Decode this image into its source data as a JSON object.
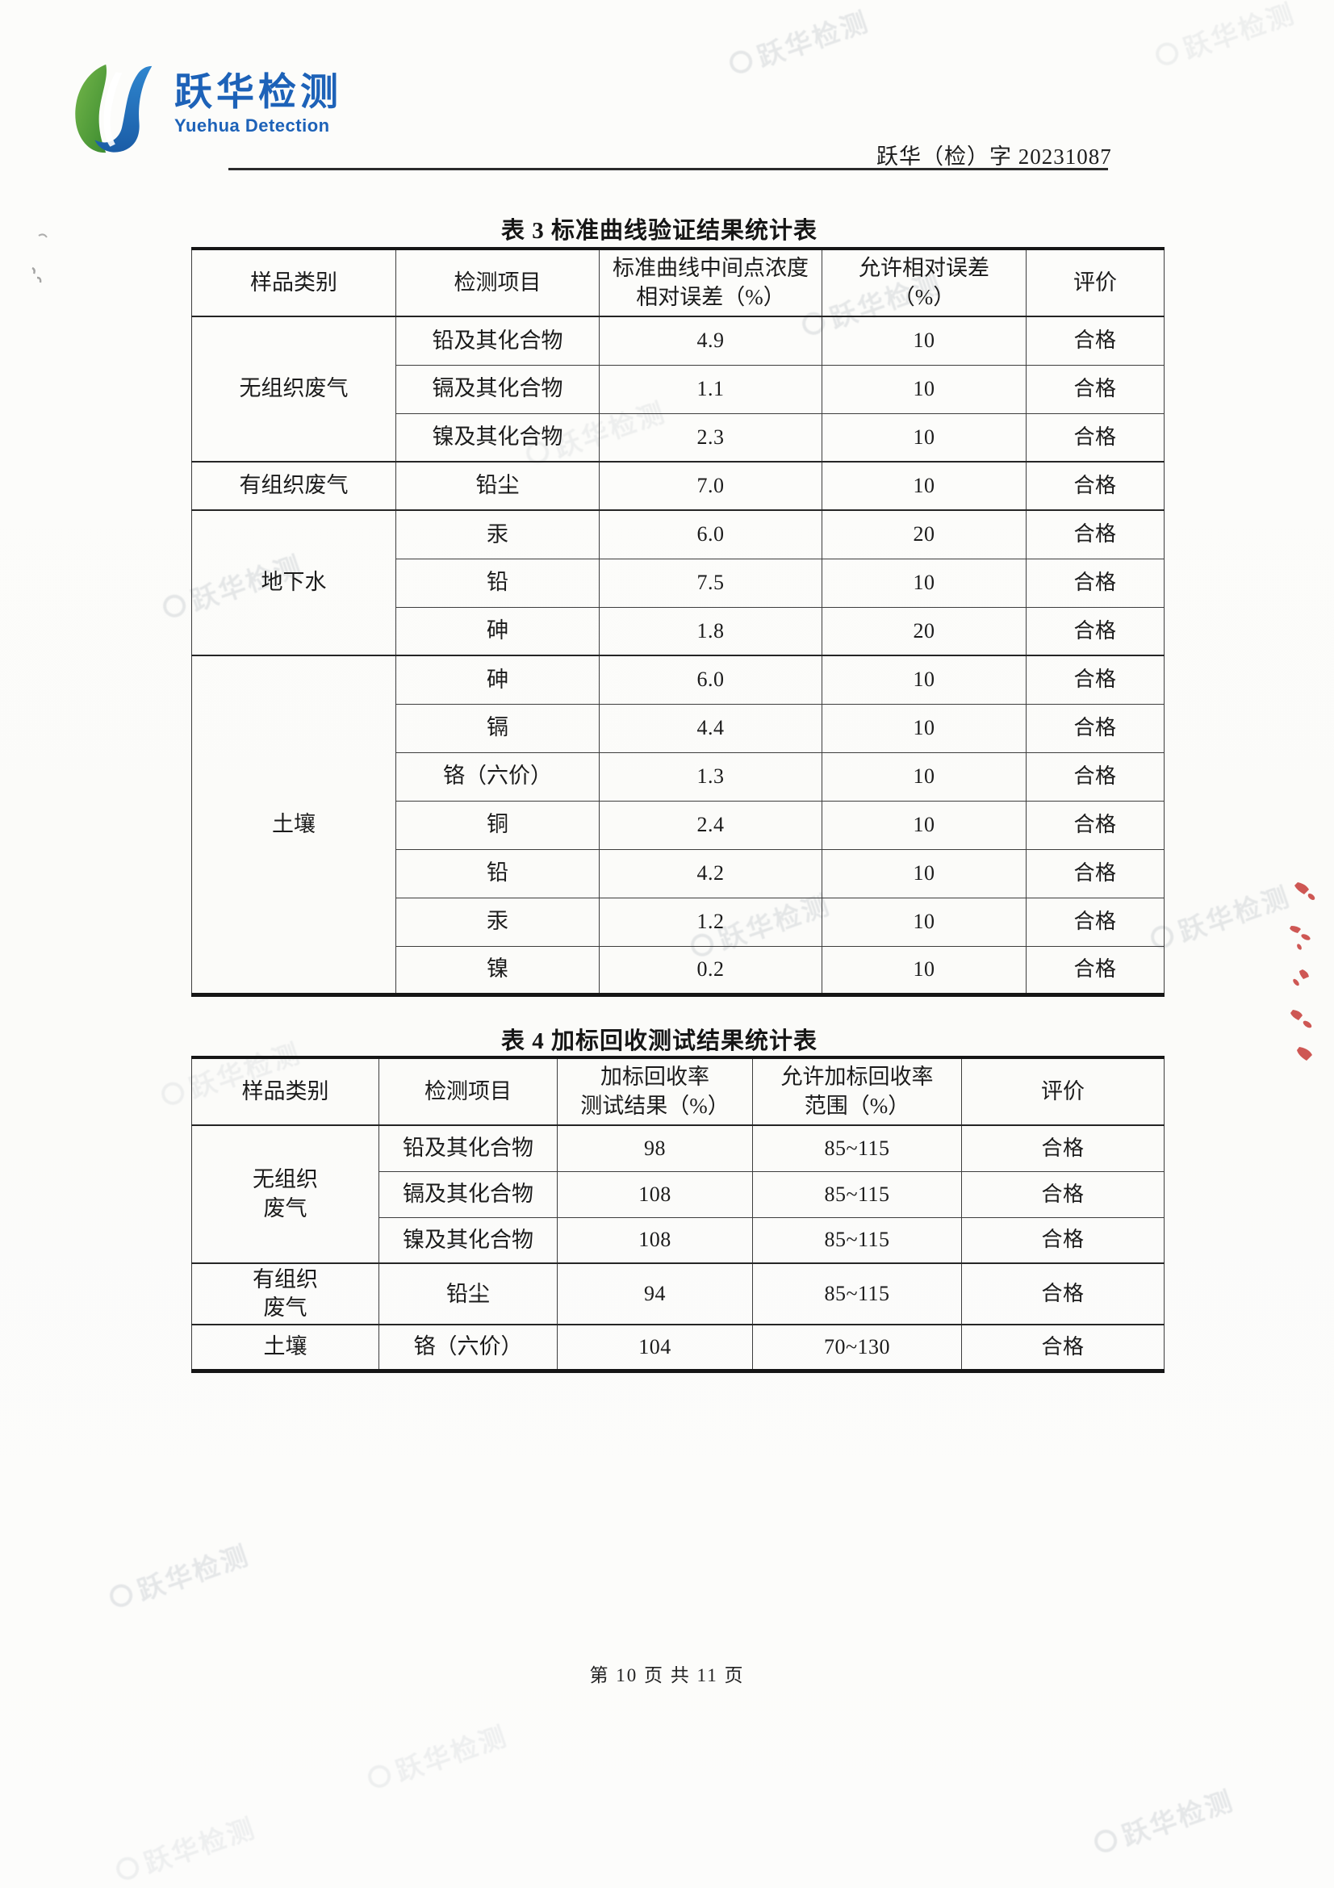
{
  "header": {
    "logo_cn": "跃华检测",
    "logo_en": "Yuehua Detection",
    "doc_number": "跃华（检）字 20231087"
  },
  "table3": {
    "title": "表 3 标准曲线验证结果统计表",
    "columns": [
      "样品类别",
      "检测项目",
      "标准曲线中间点浓度\n相对误差（%）",
      "允许相对误差\n（%）",
      "评价"
    ],
    "groups": [
      {
        "category": "无组织废气",
        "rows": [
          [
            "铅及其化合物",
            "4.9",
            "10",
            "合格"
          ],
          [
            "镉及其化合物",
            "1.1",
            "10",
            "合格"
          ],
          [
            "镍及其化合物",
            "2.3",
            "10",
            "合格"
          ]
        ]
      },
      {
        "category": "有组织废气",
        "rows": [
          [
            "铅尘",
            "7.0",
            "10",
            "合格"
          ]
        ]
      },
      {
        "category": "地下水",
        "rows": [
          [
            "汞",
            "6.0",
            "20",
            "合格"
          ],
          [
            "铅",
            "7.5",
            "10",
            "合格"
          ],
          [
            "砷",
            "1.8",
            "20",
            "合格"
          ]
        ]
      },
      {
        "category": "土壤",
        "rows": [
          [
            "砷",
            "6.0",
            "10",
            "合格"
          ],
          [
            "镉",
            "4.4",
            "10",
            "合格"
          ],
          [
            "铬（六价）",
            "1.3",
            "10",
            "合格"
          ],
          [
            "铜",
            "2.4",
            "10",
            "合格"
          ],
          [
            "铅",
            "4.2",
            "10",
            "合格"
          ],
          [
            "汞",
            "1.2",
            "10",
            "合格"
          ],
          [
            "镍",
            "0.2",
            "10",
            "合格"
          ]
        ]
      }
    ]
  },
  "table4": {
    "title": "表 4 加标回收测试结果统计表",
    "columns": [
      "样品类别",
      "检测项目",
      "加标回收率\n测试结果（%）",
      "允许加标回收率\n范围（%）",
      "评价"
    ],
    "groups": [
      {
        "category": "无组织\n废气",
        "rows": [
          [
            "铅及其化合物",
            "98",
            "85~115",
            "合格"
          ],
          [
            "镉及其化合物",
            "108",
            "85~115",
            "合格"
          ],
          [
            "镍及其化合物",
            "108",
            "85~115",
            "合格"
          ]
        ]
      },
      {
        "category": "有组织\n废气",
        "rows": [
          [
            "铅尘",
            "94",
            "85~115",
            "合格"
          ]
        ]
      },
      {
        "category": "土壤",
        "rows": [
          [
            "铬（六价）",
            "104",
            "70~130",
            "合格"
          ]
        ]
      }
    ]
  },
  "footer": {
    "page_text": "第 10 页 共 11 页"
  },
  "watermark": {
    "text": "跃华检测"
  },
  "colors": {
    "brand_blue": "#1d62b8",
    "brand_green": "#55a23a",
    "stamp_red": "#c53430"
  }
}
